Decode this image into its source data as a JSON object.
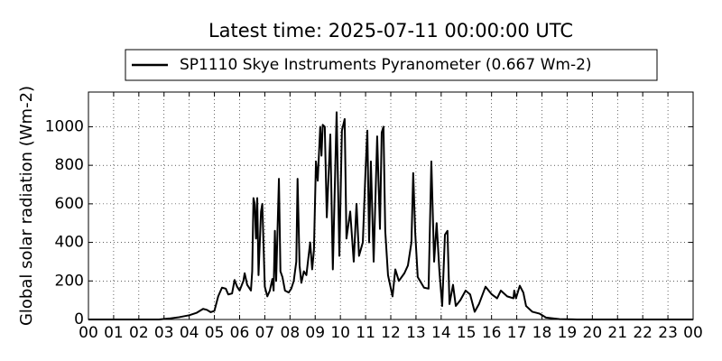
{
  "chart_data": {
    "type": "line",
    "title": "Latest time: 2025-07-11 00:00:00 UTC",
    "y_label": "Global solar radiation (Wm-2)",
    "x": [
      0,
      2.8,
      3.2,
      3.6,
      4.0,
      4.3,
      4.55,
      4.7,
      4.85,
      5.0,
      5.15,
      5.3,
      5.45,
      5.55,
      5.7,
      5.8,
      5.9,
      6.0,
      6.15,
      6.2,
      6.3,
      6.45,
      6.5,
      6.55,
      6.6,
      6.65,
      6.7,
      6.75,
      6.85,
      6.9,
      7.0,
      7.1,
      7.2,
      7.3,
      7.35,
      7.4,
      7.45,
      7.56,
      7.62,
      7.7,
      7.8,
      7.95,
      8.05,
      8.15,
      8.25,
      8.3,
      8.38,
      8.45,
      8.55,
      8.65,
      8.8,
      8.88,
      8.95,
      9.03,
      9.1,
      9.2,
      9.25,
      9.3,
      9.38,
      9.46,
      9.6,
      9.7,
      9.85,
      9.96,
      10.06,
      10.17,
      10.24,
      10.39,
      10.53,
      10.64,
      10.74,
      10.89,
      11.0,
      11.07,
      11.14,
      11.21,
      11.32,
      11.46,
      11.57,
      11.64,
      11.71,
      11.78,
      11.89,
      12.07,
      12.18,
      12.32,
      12.54,
      12.68,
      12.82,
      12.89,
      12.97,
      13.07,
      13.32,
      13.5,
      13.61,
      13.72,
      13.82,
      13.93,
      14.04,
      14.15,
      14.25,
      14.33,
      14.47,
      14.58,
      14.76,
      14.97,
      15.15,
      15.33,
      15.5,
      15.76,
      16.01,
      16.22,
      16.37,
      16.62,
      16.87,
      16.9,
      16.97,
      17.12,
      17.26,
      17.37,
      17.62,
      17.91,
      18.16,
      18.7,
      19.4,
      24
    ],
    "series": [
      {
        "name": "SP1110 Skye Instruments Pyranometer (0.667 Wm-2)",
        "color": "#000000",
        "values": [
          0,
          0,
          5,
          12,
          22,
          35,
          55,
          50,
          38,
          45,
          120,
          165,
          160,
          130,
          135,
          205,
          170,
          150,
          200,
          240,
          180,
          150,
          250,
          630,
          600,
          420,
          630,
          230,
          560,
          600,
          170,
          120,
          150,
          210,
          150,
          460,
          200,
          730,
          250,
          220,
          150,
          140,
          160,
          200,
          300,
          730,
          280,
          190,
          250,
          230,
          400,
          260,
          360,
          820,
          720,
          1000,
          850,
          1010,
          1000,
          530,
          960,
          260,
          1075,
          330,
          980,
          1040,
          420,
          560,
          300,
          600,
          330,
          400,
          780,
          980,
          400,
          820,
          300,
          950,
          470,
          970,
          1000,
          460,
          230,
          120,
          260,
          200,
          240,
          280,
          400,
          760,
          450,
          220,
          165,
          160,
          820,
          300,
          500,
          250,
          70,
          440,
          460,
          80,
          180,
          70,
          100,
          150,
          130,
          40,
          80,
          170,
          130,
          110,
          150,
          120,
          110,
          150,
          110,
          175,
          140,
          70,
          40,
          30,
          10,
          2,
          0,
          0
        ]
      }
    ],
    "xlim": [
      0,
      24
    ],
    "xticks": [
      {
        "value": 0,
        "label": "00"
      },
      {
        "value": 1,
        "label": "01"
      },
      {
        "value": 2,
        "label": "02"
      },
      {
        "value": 3,
        "label": "03"
      },
      {
        "value": 4,
        "label": "04"
      },
      {
        "value": 5,
        "label": "05"
      },
      {
        "value": 6,
        "label": "06"
      },
      {
        "value": 7,
        "label": "07"
      },
      {
        "value": 8,
        "label": "08"
      },
      {
        "value": 9,
        "label": "09"
      },
      {
        "value": 10,
        "label": "10"
      },
      {
        "value": 11,
        "label": "11"
      },
      {
        "value": 12,
        "label": "12"
      },
      {
        "value": 13,
        "label": "13"
      },
      {
        "value": 14,
        "label": "14"
      },
      {
        "value": 15,
        "label": "15"
      },
      {
        "value": 16,
        "label": "16"
      },
      {
        "value": 17,
        "label": "17"
      },
      {
        "value": 18,
        "label": "18"
      },
      {
        "value": 19,
        "label": "19"
      },
      {
        "value": 20,
        "label": "20"
      },
      {
        "value": 21,
        "label": "21"
      },
      {
        "value": 22,
        "label": "22"
      },
      {
        "value": 23,
        "label": "23"
      },
      {
        "value": 24,
        "label": "00"
      }
    ],
    "ylim": [
      0,
      1180
    ],
    "yticks": [
      0,
      200,
      400,
      600,
      800,
      1000
    ],
    "grid": true
  }
}
